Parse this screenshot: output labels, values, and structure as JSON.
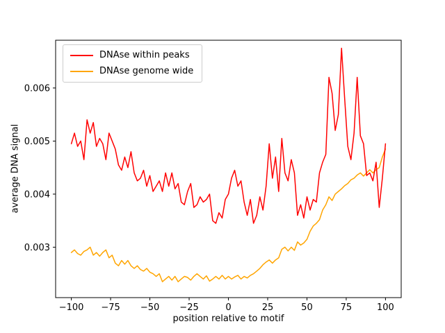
{
  "chart_data": {
    "type": "line",
    "title": "",
    "xlabel": "position relative to motif",
    "ylabel": "average DNA signal",
    "xlim": [
      -110,
      110
    ],
    "ylim": [
      0.00205,
      0.0069
    ],
    "xticks": [
      -100,
      -75,
      -50,
      -25,
      0,
      25,
      50,
      75,
      100
    ],
    "yticks": [
      0.003,
      0.004,
      0.005,
      0.006
    ],
    "grid": false,
    "legend_position": "upper left",
    "x": [
      -100,
      -98,
      -96,
      -94,
      -92,
      -90,
      -88,
      -86,
      -84,
      -82,
      -80,
      -78,
      -76,
      -74,
      -72,
      -70,
      -68,
      -66,
      -64,
      -62,
      -60,
      -58,
      -56,
      -54,
      -52,
      -50,
      -48,
      -46,
      -44,
      -42,
      -40,
      -38,
      -36,
      -34,
      -32,
      -30,
      -28,
      -26,
      -24,
      -22,
      -20,
      -18,
      -16,
      -14,
      -12,
      -10,
      -8,
      -6,
      -4,
      -2,
      0,
      2,
      4,
      6,
      8,
      10,
      12,
      14,
      16,
      18,
      20,
      22,
      24,
      26,
      28,
      30,
      32,
      34,
      36,
      38,
      40,
      42,
      44,
      46,
      48,
      50,
      52,
      54,
      56,
      58,
      60,
      62,
      64,
      66,
      68,
      70,
      72,
      74,
      76,
      78,
      80,
      82,
      84,
      86,
      88,
      90,
      92,
      94,
      96,
      98,
      100
    ],
    "series": [
      {
        "name": "DNAse within peaks",
        "color": "#ff0000",
        "values": [
          0.00495,
          0.00515,
          0.0049,
          0.005,
          0.00465,
          0.0054,
          0.00515,
          0.00535,
          0.0049,
          0.00505,
          0.00495,
          0.00465,
          0.00515,
          0.005,
          0.00485,
          0.00455,
          0.00445,
          0.0047,
          0.0045,
          0.0048,
          0.0044,
          0.00425,
          0.0043,
          0.00445,
          0.00415,
          0.00435,
          0.00405,
          0.00415,
          0.00425,
          0.00405,
          0.0044,
          0.00415,
          0.0044,
          0.0041,
          0.0042,
          0.00385,
          0.0038,
          0.00405,
          0.0042,
          0.00375,
          0.0038,
          0.00395,
          0.00385,
          0.0039,
          0.004,
          0.0035,
          0.00345,
          0.00365,
          0.00355,
          0.0039,
          0.004,
          0.0043,
          0.00445,
          0.00415,
          0.00425,
          0.00385,
          0.0036,
          0.0039,
          0.00345,
          0.0036,
          0.00395,
          0.0037,
          0.00415,
          0.00495,
          0.0043,
          0.0047,
          0.00405,
          0.00505,
          0.0044,
          0.00425,
          0.00465,
          0.0044,
          0.0036,
          0.0038,
          0.00355,
          0.00395,
          0.0037,
          0.0039,
          0.00385,
          0.0044,
          0.0046,
          0.00475,
          0.0062,
          0.0059,
          0.0052,
          0.0055,
          0.00675,
          0.0058,
          0.0049,
          0.00465,
          0.00515,
          0.0062,
          0.0051,
          0.00495,
          0.00435,
          0.0044,
          0.00425,
          0.0046,
          0.00375,
          0.0043,
          0.00495
        ]
      },
      {
        "name": "DNAse genome wide",
        "color": "#ffa500",
        "values": [
          0.0029,
          0.00295,
          0.00288,
          0.00285,
          0.00292,
          0.00295,
          0.003,
          0.00285,
          0.0029,
          0.00283,
          0.0029,
          0.00295,
          0.0028,
          0.00285,
          0.0027,
          0.00265,
          0.00275,
          0.00268,
          0.00275,
          0.00265,
          0.0026,
          0.00265,
          0.00258,
          0.00255,
          0.0026,
          0.00253,
          0.0025,
          0.00245,
          0.0025,
          0.00235,
          0.0024,
          0.00245,
          0.00238,
          0.00245,
          0.00235,
          0.0024,
          0.00245,
          0.00243,
          0.00238,
          0.00245,
          0.0025,
          0.00245,
          0.0024,
          0.00246,
          0.00236,
          0.0024,
          0.00245,
          0.0024,
          0.00247,
          0.0024,
          0.00245,
          0.0024,
          0.00244,
          0.00247,
          0.0024,
          0.00245,
          0.00242,
          0.00247,
          0.0025,
          0.00255,
          0.0026,
          0.00267,
          0.00272,
          0.00276,
          0.0027,
          0.00276,
          0.0028,
          0.00296,
          0.003,
          0.00293,
          0.003,
          0.00294,
          0.0031,
          0.00304,
          0.00308,
          0.00315,
          0.0033,
          0.0034,
          0.00345,
          0.00352,
          0.0037,
          0.0038,
          0.00395,
          0.00388,
          0.004,
          0.00405,
          0.0041,
          0.00416,
          0.0042,
          0.00427,
          0.0043,
          0.00436,
          0.0044,
          0.00434,
          0.0044,
          0.00446,
          0.0044,
          0.00446,
          0.0045,
          0.0047,
          0.00485
        ]
      }
    ]
  }
}
